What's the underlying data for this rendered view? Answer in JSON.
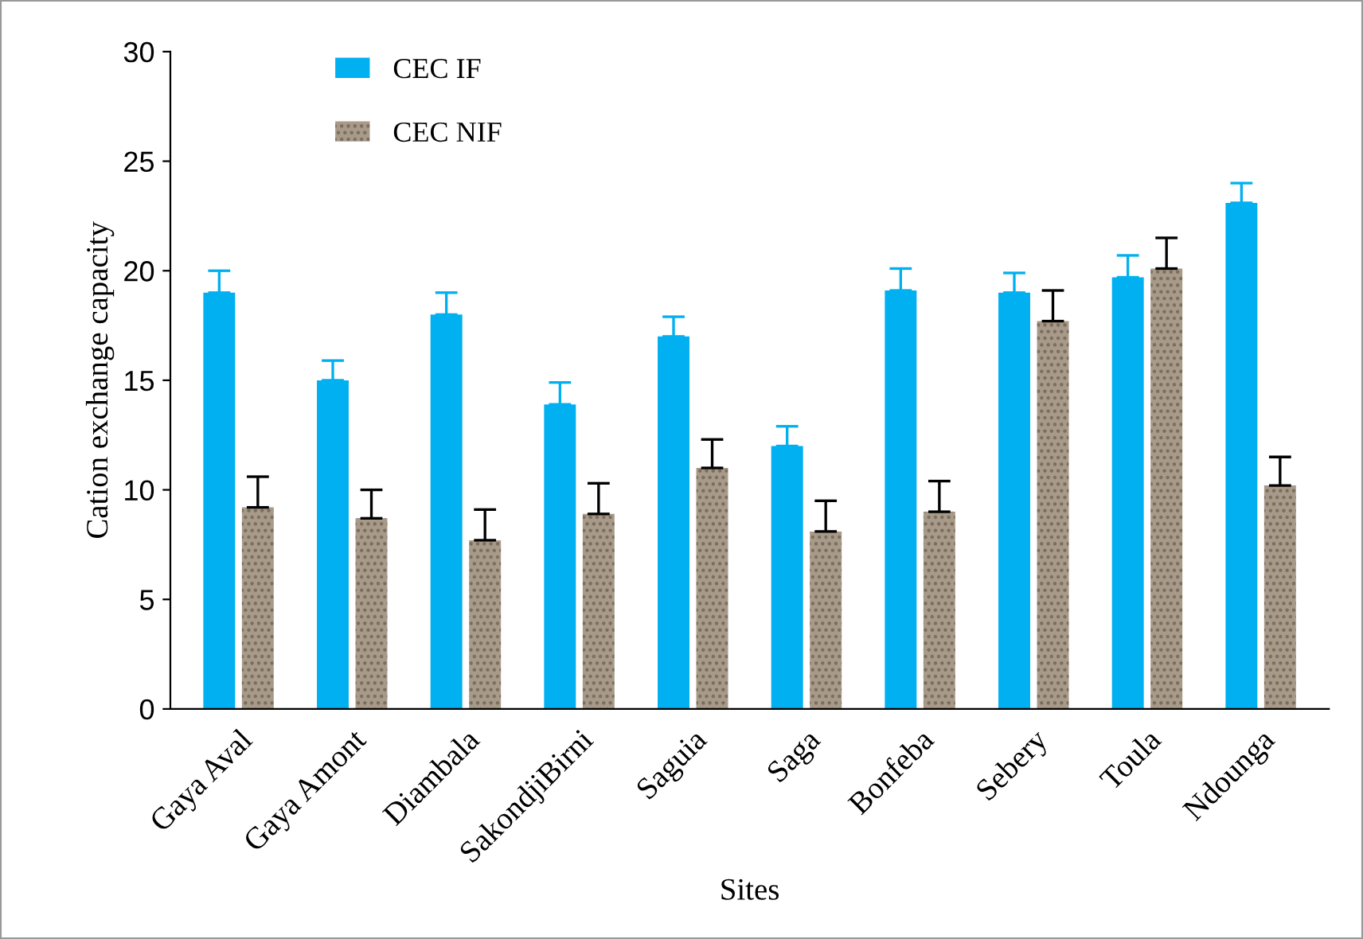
{
  "chart_data": {
    "type": "bar",
    "xlabel": "Sites",
    "ylabel": "Cation exchange capacity",
    "categories": [
      "Gaya Aval",
      "Gaya Amont",
      "Diambala",
      "SakondjiBirni",
      "Saguia",
      "Saga",
      "Bonfeba",
      "Sebery",
      "Toula",
      "Ndounga"
    ],
    "series": [
      {
        "name": "CEC IF",
        "color": "#00b0f0",
        "values": [
          19.0,
          15.0,
          18.0,
          13.9,
          17.0,
          12.0,
          19.1,
          19.0,
          19.7,
          23.1
        ],
        "errors": [
          [
            19.0,
            20.0
          ],
          [
            15.0,
            15.9
          ],
          [
            18.0,
            19.0
          ],
          [
            13.9,
            14.9
          ],
          [
            17.0,
            17.9
          ],
          [
            12.0,
            12.9
          ],
          [
            19.1,
            20.1
          ],
          [
            19.0,
            19.9
          ],
          [
            19.7,
            20.7
          ],
          [
            23.1,
            24.0
          ]
        ]
      },
      {
        "name": "CEC NIF",
        "color": "#a89a88",
        "values": [
          9.2,
          8.7,
          7.7,
          8.9,
          11.0,
          8.1,
          9.0,
          17.7,
          20.1,
          10.2
        ],
        "errors": [
          [
            9.2,
            10.6
          ],
          [
            8.7,
            10.0
          ],
          [
            7.7,
            9.1
          ],
          [
            8.9,
            10.3
          ],
          [
            11.0,
            12.3
          ],
          [
            8.1,
            9.5
          ],
          [
            9.0,
            10.4
          ],
          [
            17.7,
            19.1
          ],
          [
            20.1,
            21.5
          ],
          [
            10.2,
            11.5
          ]
        ]
      }
    ],
    "ylim": [
      0,
      30
    ],
    "yticks": [
      0,
      5,
      10,
      15,
      20,
      25,
      30
    ],
    "grid": false,
    "legend": "top left"
  }
}
